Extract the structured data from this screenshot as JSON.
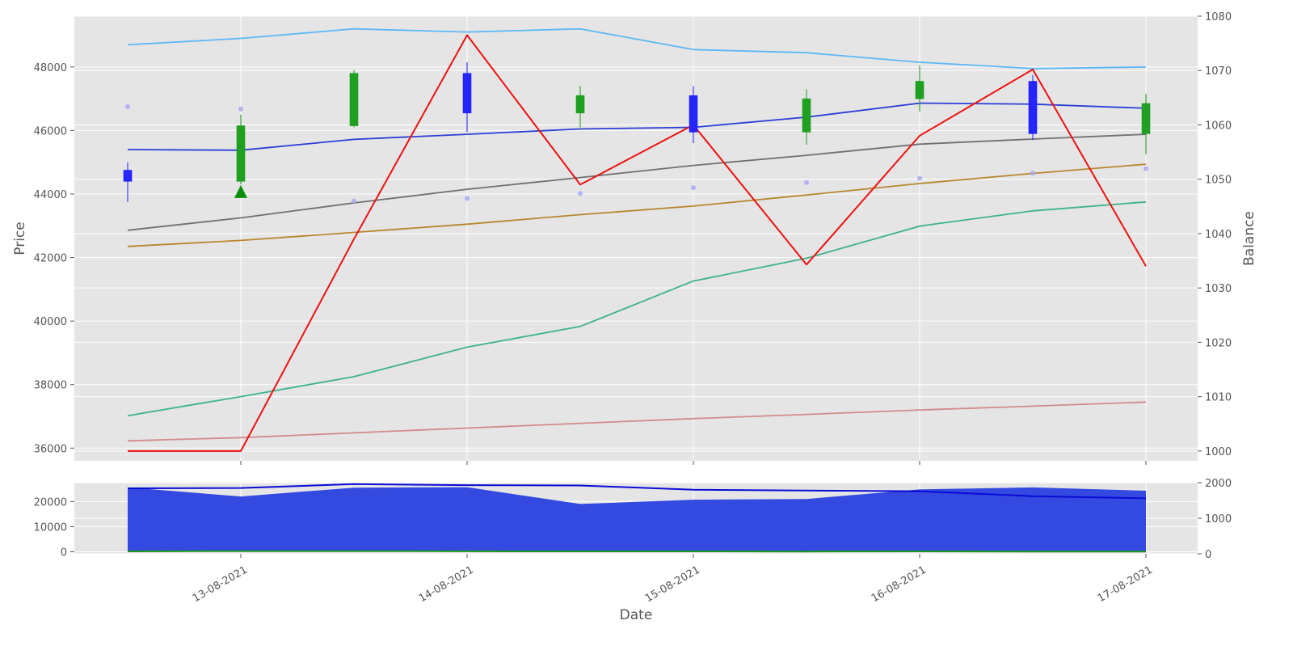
{
  "chart_data": [
    {
      "type": "candlestick",
      "xlabel": "",
      "ylabel": "Price",
      "y2label": "Balance",
      "ylim": [
        35600,
        49600
      ],
      "y2lim": [
        998.2,
        1080
      ],
      "yticks": [
        36000,
        38000,
        40000,
        42000,
        44000,
        46000,
        48000
      ],
      "y2ticks": [
        1000,
        1010,
        1020,
        1030,
        1040,
        1050,
        1060,
        1070,
        1080
      ],
      "grid": true,
      "x": [
        "12-08-2021 12:00",
        "13-08-2021",
        "13-08-2021 12:00",
        "14-08-2021",
        "14-08-2021 12:00",
        "15-08-2021",
        "15-08-2021 12:00",
        "16-08-2021",
        "16-08-2021 12:00",
        "17-08-2021"
      ],
      "candles": [
        {
          "open": 44750,
          "high": 45000,
          "low": 43750,
          "close": 44400
        },
        {
          "open": 44400,
          "high": 46500,
          "low": 44300,
          "close": 46150
        },
        {
          "open": 46150,
          "high": 47900,
          "low": 46100,
          "close": 47800
        },
        {
          "open": 47800,
          "high": 48150,
          "low": 45950,
          "close": 46550
        },
        {
          "open": 46550,
          "high": 47400,
          "low": 46100,
          "close": 47100
        },
        {
          "open": 47100,
          "high": 47400,
          "low": 45600,
          "close": 45950
        },
        {
          "open": 45950,
          "high": 47300,
          "low": 45550,
          "close": 47000
        },
        {
          "open": 47000,
          "high": 48050,
          "low": 46600,
          "close": 47550
        },
        {
          "open": 47550,
          "high": 47750,
          "low": 45700,
          "close": 45900
        },
        {
          "open": 45900,
          "high": 47150,
          "low": 45250,
          "close": 46850
        }
      ],
      "series": [
        {
          "color": "#5bb8f5",
          "axis": "left",
          "values": [
            48700,
            48900,
            49200,
            49100,
            49200,
            48550,
            48450,
            48150,
            47950,
            48000
          ]
        },
        {
          "color": "#2b3fd6",
          "axis": "left",
          "values": [
            45400,
            45380,
            45720,
            45880,
            46050,
            46100,
            46420,
            46860,
            46830,
            46700
          ]
        },
        {
          "color": "#707070",
          "axis": "left",
          "values": [
            42860,
            43250,
            43720,
            44150,
            44520,
            44900,
            45220,
            45570,
            45730,
            45880
          ]
        },
        {
          "color": "#b8862e",
          "axis": "left",
          "values": [
            42350,
            42540,
            42790,
            43050,
            43350,
            43620,
            43970,
            44330,
            44650,
            44940
          ]
        },
        {
          "color": "#3cb38a",
          "axis": "left",
          "values": [
            37020,
            37620,
            38250,
            39180,
            39830,
            41260,
            41980,
            42990,
            43470,
            43750
          ]
        },
        {
          "color": "#d38a8a",
          "axis": "left",
          "values": [
            36230,
            36330,
            36480,
            36630,
            36780,
            36930,
            37060,
            37200,
            37320,
            37450
          ]
        },
        {
          "color": "#ee1111",
          "axis": "right",
          "values": [
            1000,
            1000,
            1039,
            1076.5,
            1049,
            1060,
            1034.3,
            1058,
            1070.2,
            1034
          ]
        }
      ],
      "points": [
        {
          "color": "#a9a8f3",
          "values": [
            46750,
            46680,
            43780,
            43860,
            44020,
            44200,
            44360,
            44500,
            44660,
            44800
          ]
        }
      ],
      "markers": [
        {
          "type": "buy",
          "color": "#0a8f0a",
          "x_index": 1,
          "value": 44080
        }
      ]
    },
    {
      "type": "area",
      "xlabel": "Date",
      "ylabel": "",
      "ylim": [
        -800,
        27500
      ],
      "y2lim": [
        0,
        2000
      ],
      "yticks": [
        0,
        10000,
        20000
      ],
      "y2ticks": [
        0,
        1000,
        2000
      ],
      "xticklabels": [
        "13-08-2021",
        "14-08-2021",
        "15-08-2021",
        "16-08-2021",
        "17-08-2021"
      ],
      "grid": true,
      "series": [
        {
          "color": "#3349e0",
          "axis": "left",
          "kind": "area",
          "values": [
            25600,
            22000,
            25500,
            25700,
            19000,
            20700,
            21000,
            24800,
            25600,
            24300
          ]
        },
        {
          "color": "#0a0ad6",
          "axis": "right",
          "kind": "line",
          "values": [
            1840,
            1850,
            1960,
            1930,
            1920,
            1800,
            1780,
            1760,
            1620,
            1560
          ]
        },
        {
          "color": "#1a9a1a",
          "axis": "left",
          "kind": "line",
          "values": [
            150,
            250,
            250,
            200,
            150,
            150,
            100,
            150,
            100,
            100
          ]
        }
      ]
    }
  ]
}
